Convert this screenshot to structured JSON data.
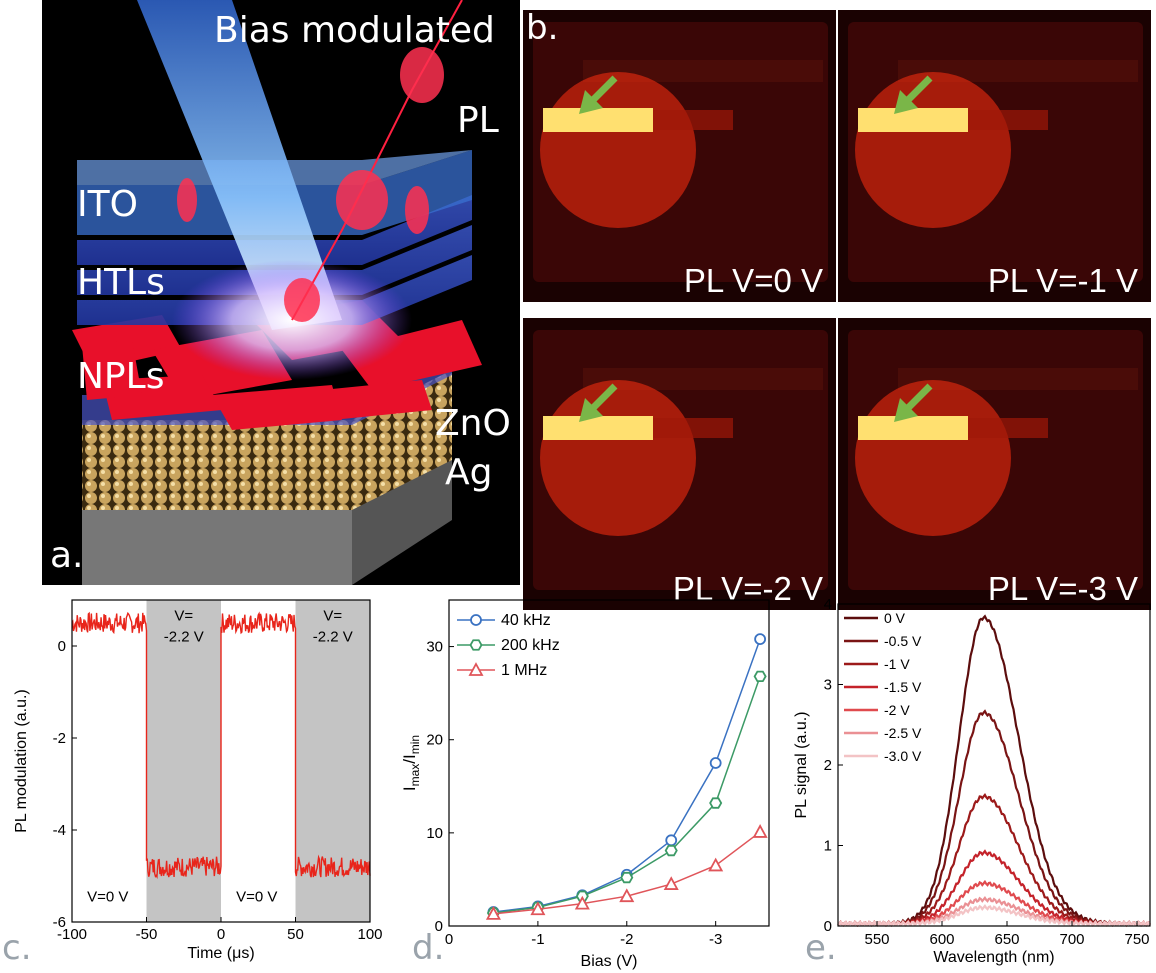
{
  "panel_a": {
    "letter": "a.",
    "labels": {
      "title_top": "Bias modulated",
      "pl": "PL",
      "ito": "ITO",
      "htls": "HTLs",
      "npls": "NPLs",
      "zno": "ZnO",
      "ag": "Ag"
    }
  },
  "panel_b": {
    "letter": "b.",
    "photos": [
      {
        "caption": "PL V=0 V",
        "bar_split": 0.0
      },
      {
        "caption": "PL V=-1 V",
        "bar_split": 0.0
      },
      {
        "caption": "PL V=-2 V",
        "bar_split": 0.0
      },
      {
        "caption": "PL V=-3 V",
        "bar_split": 0.0
      }
    ],
    "colors": {
      "glow": "#ff3010",
      "bar": "#ffe070",
      "arrow": "#7ab648"
    }
  },
  "chart_data": [
    {
      "id": "c",
      "letter": "c.",
      "type": "line",
      "xlabel": "Time (μs)",
      "ylabel": "PL modulation (a.u.)",
      "xlim": [
        -100,
        100
      ],
      "ylim": [
        -6,
        1
      ],
      "xticks": [
        -100,
        -50,
        0,
        50,
        100
      ],
      "yticks": [
        -6,
        -4,
        -2,
        0
      ],
      "shaded_intervals": [
        [
          -50,
          0
        ],
        [
          50,
          100
        ]
      ],
      "annotations": [
        {
          "text": "V=",
          "x": -25,
          "y": 0.55
        },
        {
          "text": "-2.2 V",
          "x": -25,
          "y": 0.1
        },
        {
          "text": "V=",
          "x": 75,
          "y": 0.55
        },
        {
          "text": "-2.2 V",
          "x": 75,
          "y": 0.1
        },
        {
          "text": "V=0 V",
          "x": -76,
          "y": -5.55
        },
        {
          "text": "V=0 V",
          "x": 24,
          "y": -5.55
        }
      ],
      "series": [
        {
          "levels": {
            "high": 0.5,
            "low": -4.8
          },
          "segments": [
            [
              -100,
              -50,
              0.5
            ],
            [
              -50,
              0,
              -4.8
            ],
            [
              0,
              50,
              0.5
            ],
            [
              50,
              100,
              -4.8
            ]
          ],
          "color": "#e8251b"
        }
      ]
    },
    {
      "id": "d",
      "letter": "d.",
      "type": "line",
      "xlabel": "Bias (V)",
      "ylabel_main": "I",
      "ylabel_sub1": "max",
      "ylabel_sep": "/I",
      "ylabel_sub2": "min",
      "x": [
        -0.5,
        -1,
        -1.5,
        -2,
        -2.5,
        -3,
        -3.5
      ],
      "xlim": [
        0,
        -3.6
      ],
      "ylim": [
        0,
        35
      ],
      "xtick_labels": [
        "0",
        "-1",
        "-2",
        "-3"
      ],
      "xticks": [
        0,
        -1,
        -2,
        -3
      ],
      "yticks": [
        0,
        10,
        20,
        30
      ],
      "legend": "top-left",
      "series": [
        {
          "name": "40 kHz",
          "marker": "circle",
          "color": "#3a72c2",
          "values": [
            1.5,
            2.1,
            3.3,
            5.5,
            9.2,
            17.5,
            30.8
          ]
        },
        {
          "name": "200 kHz",
          "marker": "hexagon",
          "color": "#3c9a66",
          "values": [
            1.4,
            2.0,
            3.2,
            5.2,
            8.1,
            13.2,
            26.8
          ]
        },
        {
          "name": "1 MHz",
          "marker": "triangle",
          "color": "#e0555a",
          "values": [
            1.3,
            1.8,
            2.4,
            3.2,
            4.5,
            6.5,
            10.1
          ]
        }
      ]
    },
    {
      "id": "e",
      "letter": "e.",
      "type": "line",
      "xlabel": "Wavelength (nm)",
      "ylabel": "PL signal (a.u.)",
      "xlim": [
        520,
        760
      ],
      "ylim": [
        0,
        4
      ],
      "xticks": [
        550,
        600,
        650,
        700,
        750
      ],
      "xtick_labels": [
        "550",
        "600",
        "650",
        "700",
        "750"
      ],
      "yticks": [
        0,
        1,
        2,
        3,
        4
      ],
      "legend": "top-left",
      "peak_nm": 632,
      "series": [
        {
          "name": "0 V",
          "color": "#5c0d0d",
          "peak": 3.8
        },
        {
          "name": "-0.5 V",
          "color": "#7a1414",
          "peak": 2.62
        },
        {
          "name": "-1 V",
          "color": "#9c1a1a",
          "peak": 1.58
        },
        {
          "name": "-1.5 V",
          "color": "#c4222a",
          "peak": 0.88
        },
        {
          "name": "-2 V",
          "color": "#e04a4e",
          "peak": 0.5
        },
        {
          "name": "-2.5 V",
          "color": "#ea9094",
          "peak": 0.3
        },
        {
          "name": "-3.0 V",
          "color": "#f3c3c5",
          "peak": 0.2
        }
      ]
    }
  ]
}
